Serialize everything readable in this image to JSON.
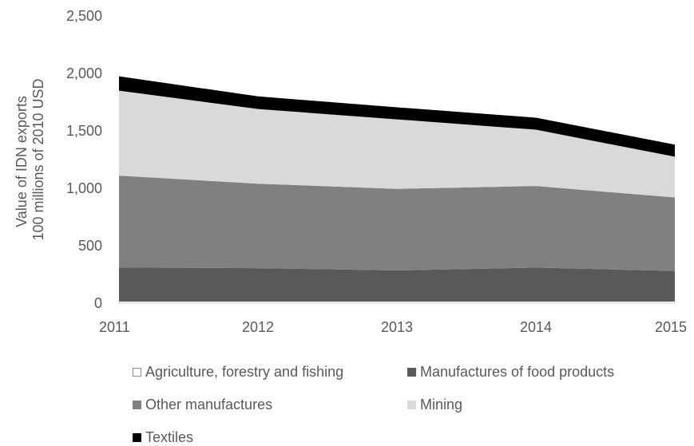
{
  "chart_data": {
    "type": "area",
    "stacked": true,
    "x": [
      "2011",
      "2012",
      "2013",
      "2014",
      "2015"
    ],
    "ylabel_lines": [
      "Value of IDN exports",
      "100 millions of 2010 USD"
    ],
    "ylim": [
      0,
      2500
    ],
    "yticks": [
      0,
      500,
      1000,
      1500,
      2000,
      2500
    ],
    "ytick_labels": [
      "0",
      "500",
      "1,000",
      "1,500",
      "2,000",
      "2,500"
    ],
    "legend_position": "bottom",
    "series": [
      {
        "name": "Agriculture, forestry and fishing",
        "color": "#ffffff",
        "values": [
          15,
          15,
          15,
          15,
          15
        ]
      },
      {
        "name": "Manufactures of food products",
        "color": "#595959",
        "values": [
          295,
          290,
          270,
          295,
          265
        ]
      },
      {
        "name": "Other manufactures",
        "color": "#808080",
        "values": [
          800,
          735,
          710,
          710,
          640
        ]
      },
      {
        "name": "Mining",
        "color": "#d9d9d9",
        "values": [
          740,
          650,
          605,
          490,
          355
        ]
      },
      {
        "name": "Textiles",
        "color": "#000000",
        "values": [
          125,
          110,
          105,
          105,
          105
        ]
      }
    ]
  }
}
